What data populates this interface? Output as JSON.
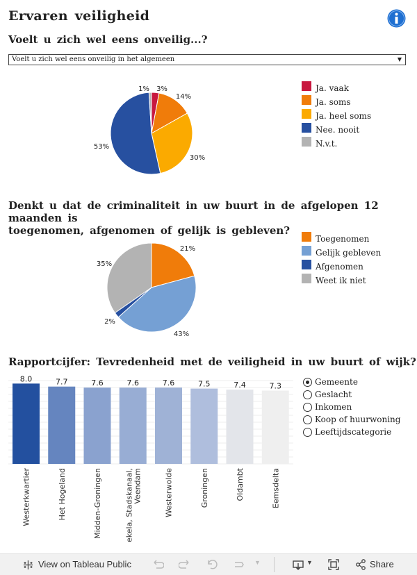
{
  "header": {
    "title": "Ervaren veiligheid",
    "info_icon": "info-icon"
  },
  "section1": {
    "title": "Voelt u zich wel eens onveilig...?",
    "dropdown_value": "Voelt u zich wel eens onveilig in het algemeen"
  },
  "section2": {
    "title_line1": "Denkt u dat de criminaliteit in uw buurt in de afgelopen 12 maanden is",
    "title_line2": "toegenomen, afgenomen of gelijk is gebleven?"
  },
  "section3": {
    "title": "Rapportcijfer: Tevredenheid met de veiligheid in uw buurt of wijk?"
  },
  "radio_options": [
    {
      "label": "Gemeente",
      "selected": true
    },
    {
      "label": "Geslacht",
      "selected": false
    },
    {
      "label": "Inkomen",
      "selected": false
    },
    {
      "label": "Koop of huurwoning",
      "selected": false
    },
    {
      "label": "Leeftijdscategorie",
      "selected": false
    }
  ],
  "toolbar": {
    "view_label": "View on Tableau Public",
    "share_label": "Share"
  },
  "chart_data": [
    {
      "type": "pie",
      "title": "Voelt u zich wel eens onveilig...?",
      "slices": [
        {
          "name": "Ja. vaak",
          "value": 3,
          "label": "3%",
          "color": "#c8183f"
        },
        {
          "name": "Ja. soms",
          "value": 14,
          "label": "14%",
          "color": "#f07c0a"
        },
        {
          "name": "Ja. heel soms",
          "value": 30,
          "label": "30%",
          "color": "#fbaa00"
        },
        {
          "name": "Nee. nooit",
          "value": 53,
          "label": "53%",
          "color": "#2750a0"
        },
        {
          "name": "N.v.t.",
          "value": 1,
          "label": "1%",
          "color": "#b3b3b3"
        }
      ]
    },
    {
      "type": "pie",
      "title": "Denkt u dat de criminaliteit in uw buurt in de afgelopen 12 maanden is toegenomen, afgenomen of gelijk is gebleven?",
      "slices": [
        {
          "name": "Toegenomen",
          "value": 21,
          "label": "21%",
          "color": "#f07c0a"
        },
        {
          "name": "Gelijk gebleven",
          "value": 43,
          "label": "43%",
          "color": "#75a0d4"
        },
        {
          "name": "Afgenomen",
          "value": 2,
          "label": "2%",
          "color": "#2750a0"
        },
        {
          "name": "Weet ik niet",
          "value": 35,
          "label": "35%",
          "color": "#b3b3b3"
        }
      ]
    },
    {
      "type": "bar",
      "title": "Rapportcijfer: Tevredenheid met de veiligheid in uw buurt of wijk?",
      "categories": [
        "Westerkwartier",
        "Het Hogeland",
        "Midden-Groningen",
        "Pekela, Stadskanaal, Veendam",
        "Westerwolde",
        "Groningen",
        "Oldambt",
        "Eemsdelta"
      ],
      "values": [
        8.0,
        7.7,
        7.6,
        7.6,
        7.6,
        7.5,
        7.4,
        7.3
      ],
      "value_labels": [
        "8.0",
        "7.7",
        "7.6",
        "7.6",
        "7.6",
        "7.5",
        "7.4",
        "7.3"
      ],
      "colors": [
        "#23509f",
        "#6585bf",
        "#8aa2cf",
        "#98add4",
        "#9fb2d6",
        "#afbedd",
        "#e3e5ea",
        "#efefef"
      ],
      "ylim": [
        0,
        8.3
      ],
      "grid": true
    }
  ]
}
